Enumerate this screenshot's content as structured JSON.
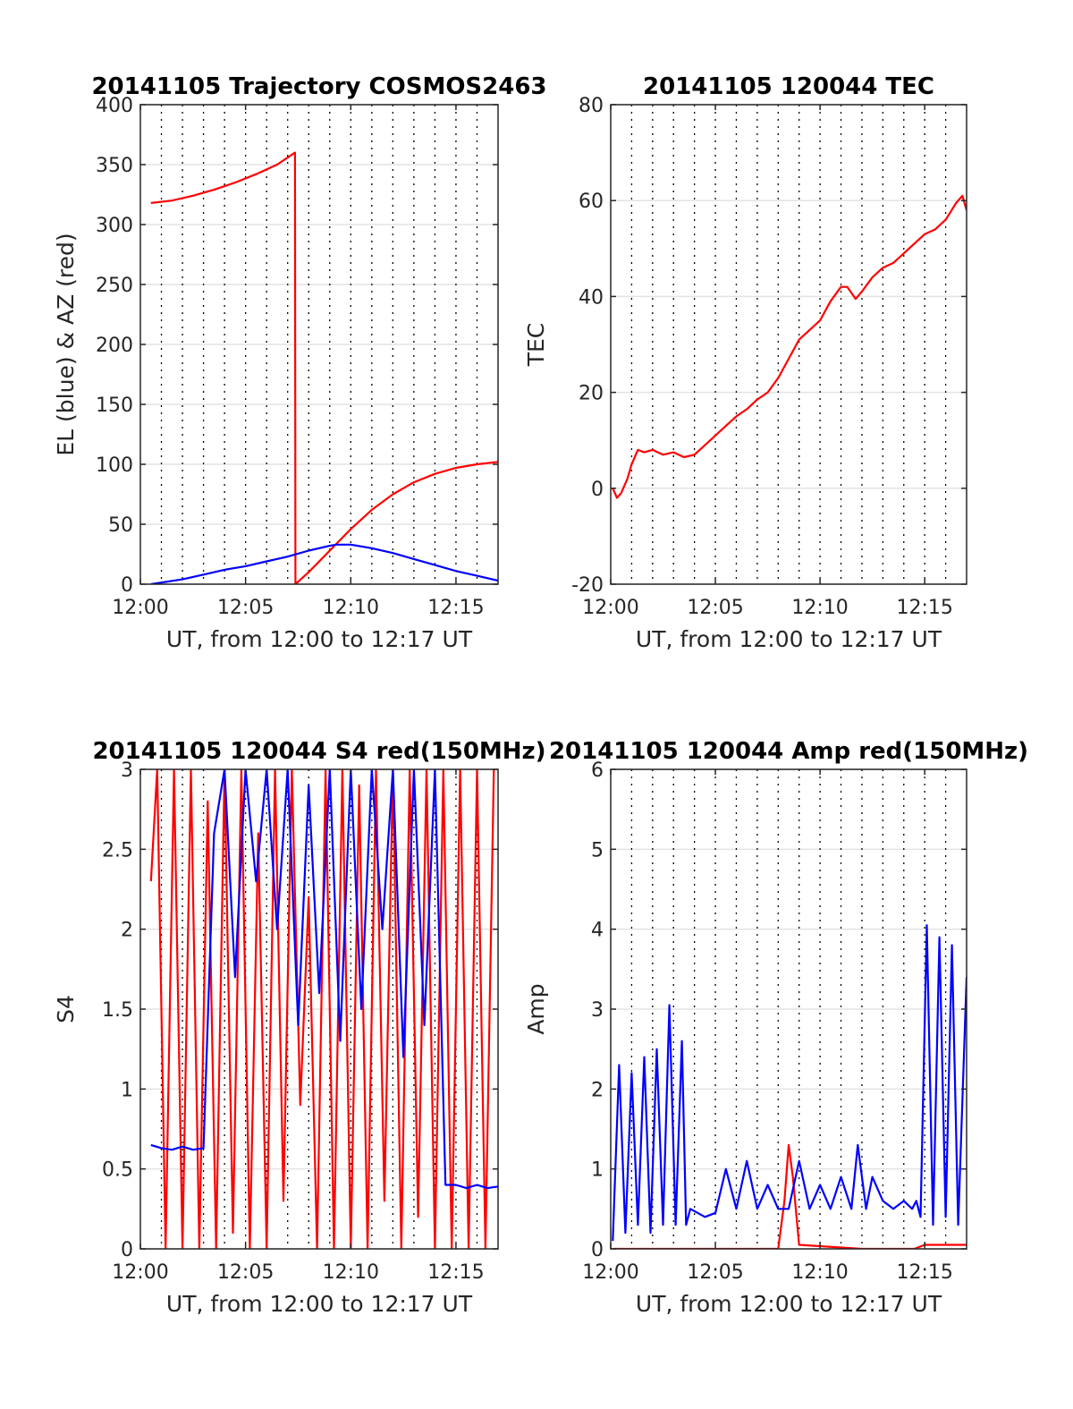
{
  "chart_data": [
    {
      "type": "line",
      "title": "20141105 Trajectory COSMOS2463",
      "xlabel": "UT, from 12:00 to 12:17 UT",
      "ylabel": "EL (blue) & AZ (red)",
      "xlim": [
        0,
        17
      ],
      "ylim": [
        0,
        400
      ],
      "xticks": [
        0,
        5,
        10,
        15
      ],
      "xtick_labels": [
        "12:00",
        "12:05",
        "12:10",
        "12:15"
      ],
      "yticks": [
        0,
        50,
        100,
        150,
        200,
        250,
        300,
        350,
        400
      ],
      "grid": true,
      "series": [
        {
          "color": "#ff0000",
          "x": [
            0.5,
            1.5,
            2.5,
            3.5,
            4.5,
            5.5,
            6.5,
            7.35,
            7.37,
            8,
            9,
            10,
            11,
            12,
            13,
            14,
            15,
            16,
            17
          ],
          "y": [
            318,
            320,
            324,
            329,
            335,
            342,
            350,
            360,
            0,
            10,
            28,
            46,
            62,
            75,
            85,
            92,
            97,
            100,
            102
          ]
        },
        {
          "color": "#0000ff",
          "x": [
            0.5,
            2,
            3,
            4,
            5,
            6,
            7,
            8,
            9,
            9.3,
            10,
            11,
            12,
            13,
            14,
            15,
            16,
            17
          ],
          "y": [
            0,
            4,
            8,
            12,
            15,
            19,
            23,
            28,
            32,
            33,
            33,
            30,
            26,
            21,
            16,
            11,
            7,
            3
          ]
        }
      ]
    },
    {
      "type": "line",
      "title": "20141105 120044 TEC",
      "xlabel": "UT, from 12:00 to 12:17 UT",
      "ylabel": "TEC",
      "xlim": [
        0,
        17
      ],
      "ylim": [
        -20,
        80
      ],
      "xticks": [
        0,
        5,
        10,
        15
      ],
      "xtick_labels": [
        "12:00",
        "12:05",
        "12:10",
        "12:15"
      ],
      "yticks": [
        -20,
        0,
        20,
        40,
        60,
        80
      ],
      "grid": true,
      "series": [
        {
          "color": "#ff0000",
          "x": [
            0.1,
            0.3,
            0.5,
            0.8,
            1.0,
            1.3,
            1.6,
            2.0,
            2.5,
            3.0,
            3.5,
            4.0,
            4.5,
            5.0,
            5.5,
            6.0,
            6.5,
            7.0,
            7.5,
            8.0,
            8.5,
            9.0,
            9.5,
            10.0,
            10.5,
            11.0,
            11.3,
            11.7,
            12.0,
            12.5,
            13.0,
            13.5,
            14.0,
            14.5,
            15.0,
            15.5,
            16.0,
            16.5,
            16.8,
            17.0
          ],
          "y": [
            0,
            -2,
            -1,
            2,
            5,
            8,
            7.5,
            8,
            7,
            7.5,
            6.5,
            7,
            9,
            11,
            13,
            15,
            16.5,
            18.5,
            20,
            23,
            27,
            31,
            33,
            35,
            39,
            42,
            42,
            39.5,
            41,
            44,
            46,
            47,
            49,
            51,
            53,
            54,
            56,
            59.5,
            61,
            58
          ]
        }
      ]
    },
    {
      "type": "line",
      "title": "20141105 120044 S4 red(150MHz)",
      "xlabel": "UT, from 12:00 to 12:17 UT",
      "ylabel": "S4",
      "xlim": [
        0,
        17
      ],
      "ylim": [
        0,
        3
      ],
      "xticks": [
        0,
        5,
        10,
        15
      ],
      "xtick_labels": [
        "12:00",
        "12:05",
        "12:10",
        "12:15"
      ],
      "yticks": [
        0,
        0.5,
        1,
        1.5,
        2,
        2.5,
        3
      ],
      "grid": true,
      "series": [
        {
          "color": "#ff0000",
          "x": [
            0.5,
            0.8,
            1.2,
            1.6,
            2.0,
            2.4,
            2.8,
            3.2,
            3.6,
            4.0,
            4.4,
            4.8,
            5.2,
            5.6,
            6.0,
            6.4,
            6.8,
            7.2,
            7.6,
            8.0,
            8.4,
            8.8,
            9.2,
            9.6,
            10.0,
            10.4,
            10.8,
            11.2,
            11.6,
            12.0,
            12.4,
            12.8,
            13.2,
            13.6,
            14.0,
            14.4,
            14.8,
            15.2,
            15.6,
            16.0,
            16.4,
            16.8
          ],
          "y": [
            2.3,
            3.0,
            0.0,
            3.0,
            0.0,
            3.0,
            0.0,
            2.8,
            0.0,
            3.0,
            0.1,
            3.0,
            0.0,
            2.6,
            0.0,
            3.0,
            0.3,
            3.0,
            0.9,
            2.2,
            0.0,
            3.0,
            0.0,
            3.0,
            0.0,
            2.9,
            0.0,
            3.0,
            0.3,
            3.0,
            0.0,
            3.0,
            0.2,
            3.0,
            0.0,
            3.0,
            0.0,
            3.0,
            0.0,
            3.0,
            0.0,
            3.0
          ]
        },
        {
          "color": "#0000ff",
          "x": [
            0.5,
            1.0,
            1.5,
            2.0,
            2.5,
            3.0,
            3.5,
            4.0,
            4.5,
            5.0,
            5.5,
            6.0,
            6.5,
            7.0,
            7.5,
            8.0,
            8.5,
            9.0,
            9.5,
            10.0,
            10.5,
            11.0,
            11.5,
            12.0,
            12.5,
            13.0,
            13.5,
            14.0,
            14.5,
            15.0,
            15.5,
            16.0,
            16.5,
            17.0
          ],
          "y": [
            0.65,
            0.63,
            0.62,
            0.64,
            0.62,
            0.63,
            2.6,
            3.0,
            1.7,
            3.0,
            2.3,
            3.0,
            2.0,
            3.0,
            1.4,
            2.9,
            1.6,
            3.0,
            1.3,
            3.0,
            1.5,
            3.0,
            2.0,
            3.0,
            1.2,
            3.0,
            1.4,
            3.0,
            0.4,
            0.4,
            0.38,
            0.4,
            0.38,
            0.39
          ]
        }
      ]
    },
    {
      "type": "line",
      "title": "20141105 120044 Amp red(150MHz)",
      "xlabel": "UT, from 12:00 to 12:17 UT",
      "ylabel": "Amp",
      "xlim": [
        0,
        17
      ],
      "ylim": [
        0,
        6
      ],
      "xticks": [
        0,
        5,
        10,
        15
      ],
      "xtick_labels": [
        "12:00",
        "12:05",
        "12:10",
        "12:15"
      ],
      "yticks": [
        0,
        1,
        2,
        3,
        4,
        5,
        6
      ],
      "grid": true,
      "series": [
        {
          "color": "#ff0000",
          "x": [
            0.1,
            4.0,
            8.0,
            8.3,
            8.5,
            8.7,
            9.0,
            12.0,
            14.5,
            15.0,
            15.5,
            16.0,
            16.5,
            17.0
          ],
          "y": [
            0.0,
            0.0,
            0.0,
            0.6,
            1.3,
            0.9,
            0.05,
            0.0,
            0.0,
            0.05,
            0.05,
            0.05,
            0.05,
            0.05
          ]
        },
        {
          "color": "#0000ff",
          "x": [
            0.1,
            0.4,
            0.7,
            1.0,
            1.3,
            1.6,
            1.9,
            2.2,
            2.5,
            2.8,
            3.1,
            3.4,
            3.6,
            3.8,
            4.5,
            5.0,
            5.5,
            6.0,
            6.5,
            7.0,
            7.5,
            8.0,
            8.5,
            9.0,
            9.5,
            10.0,
            10.5,
            11.0,
            11.5,
            11.8,
            12.2,
            12.5,
            13.0,
            13.5,
            14.0,
            14.4,
            14.6,
            14.8,
            15.1,
            15.4,
            15.7,
            16.0,
            16.3,
            16.6,
            17.0
          ],
          "y": [
            0.1,
            2.3,
            0.2,
            2.2,
            0.3,
            2.4,
            0.2,
            2.5,
            0.3,
            3.05,
            0.3,
            2.6,
            0.3,
            0.5,
            0.4,
            0.45,
            1.0,
            0.5,
            1.1,
            0.5,
            0.8,
            0.5,
            0.5,
            1.1,
            0.5,
            0.8,
            0.5,
            0.9,
            0.5,
            1.3,
            0.5,
            0.9,
            0.6,
            0.5,
            0.6,
            0.5,
            0.6,
            0.4,
            4.05,
            0.3,
            3.9,
            0.4,
            3.8,
            0.3,
            3.4
          ]
        }
      ]
    }
  ]
}
